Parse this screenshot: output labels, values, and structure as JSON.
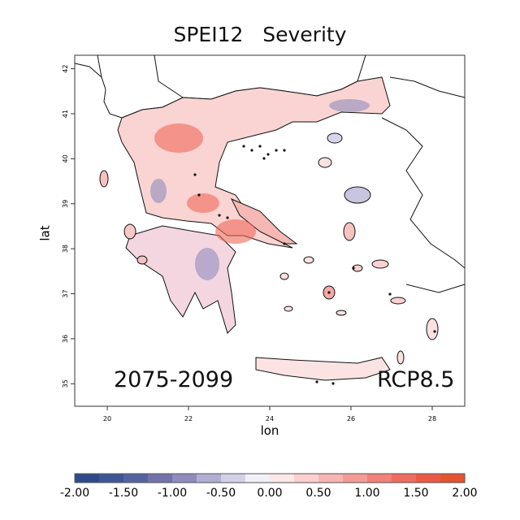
{
  "title": "SPEI12   Severity",
  "period_label": "2075-2099",
  "scenario_label": "RCP8.5",
  "xlabel": "lon",
  "ylabel": "lat",
  "x_ticks": [
    "20",
    "22",
    "24",
    "26",
    "28"
  ],
  "y_ticks": [
    "42",
    "41",
    "40",
    "39",
    "38",
    "37",
    "36",
    "35"
  ],
  "x_range": [
    19.2,
    28.8
  ],
  "y_range": [
    34.5,
    42.3
  ],
  "colorbar": {
    "ticks": [
      "-2.00",
      "-1.50",
      "-1.00",
      "-0.50",
      "0.00",
      "0.50",
      "1.00",
      "1.50",
      "2.00"
    ],
    "range": [
      -2,
      2
    ],
    "step": 0.25,
    "colors": [
      "#2e4a8c",
      "#3d5696",
      "#5464a0",
      "#7373aa",
      "#8f8cbb",
      "#b1aed3",
      "#d3d1e6",
      "#f1f0f6",
      "#fde8e8",
      "#fbcfcf",
      "#f8b4b2",
      "#f59a95",
      "#f2817a",
      "#ef6d5f",
      "#ea5a44",
      "#e5532f"
    ]
  }
}
